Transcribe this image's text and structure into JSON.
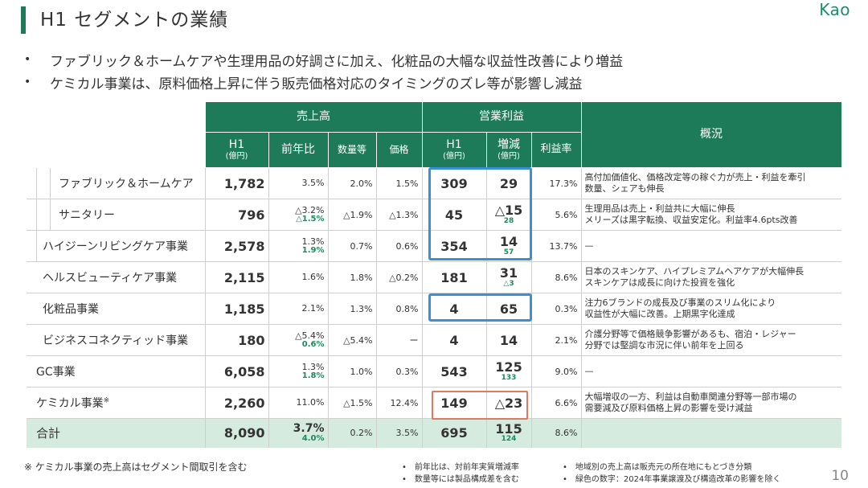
{
  "header": {
    "title": "H1 セグメントの業績",
    "logo": "Kao"
  },
  "bullets": [
    "ファブリック＆ホームケアや生理用品の好調さに加え、化粧品の大幅な収益性改善により増益",
    "ケミカル事業は、原料価格上昇に伴う販売価格対応のタイミングのズレ等が影響し減益"
  ],
  "table": {
    "group_sales": "売上高",
    "group_op": "営業利益",
    "col_h1": "H1",
    "col_unit": "(億円)",
    "col_yoy": "前年比",
    "col_volume": "数量等",
    "col_price": "価格",
    "col_op_h1": "H1",
    "col_change": "増減",
    "col_margin": "利益率",
    "col_summary": "概況",
    "rows": [
      {
        "name": "ファブリック＆ホームケア",
        "sales": "1,782",
        "yoy": "3.5%",
        "yoy_adj": "",
        "volume": "2.0%",
        "price": "1.5%",
        "op": "309",
        "change": "29",
        "change_adj": "",
        "margin": "17.3%",
        "note1": "高付加価値化、価格改定等の稼ぐ力が売上・利益を牽引",
        "note2": "数量、シェアも伸長"
      },
      {
        "name": "サニタリー",
        "sales": "796",
        "yoy": "△3.2%",
        "yoy_adj": "△1.5%",
        "volume": "△1.9%",
        "price": "△1.3%",
        "op": "45",
        "change": "△15",
        "change_adj": "28",
        "margin": "5.6%",
        "note1": "生理用品は売上・利益共に大幅に伸長",
        "note2": "メリーズは黒字転換、収益安定化。利益率4.6pts改善"
      },
      {
        "name": "ハイジーンリビングケア事業",
        "sales": "2,578",
        "yoy": "1.3%",
        "yoy_adj": "1.9%",
        "volume": "0.7%",
        "price": "0.6%",
        "op": "354",
        "change": "14",
        "change_adj": "57",
        "margin": "13.7%",
        "note1": "—",
        "note2": ""
      },
      {
        "name": "ヘルスビューティケア事業",
        "sales": "2,115",
        "yoy": "1.6%",
        "yoy_adj": "",
        "volume": "1.8%",
        "price": "△0.2%",
        "op": "181",
        "change": "31",
        "change_adj": "△3",
        "margin": "8.6%",
        "note1": "日本のスキンケア、ハイプレミアムヘアケアが大幅伸長",
        "note2": "スキンケアは成長に向けた投資を強化"
      },
      {
        "name": "化粧品事業",
        "sales": "1,185",
        "yoy": "2.1%",
        "yoy_adj": "",
        "volume": "1.3%",
        "price": "0.8%",
        "op": "4",
        "change": "65",
        "change_adj": "",
        "margin": "0.3%",
        "note1": "注力6ブランドの成長及び事業のスリム化により",
        "note2": "収益性が大幅に改善。上期黒字化達成"
      },
      {
        "name": "ビジネスコネクティッド事業",
        "sales": "180",
        "yoy": "△5.4%",
        "yoy_adj": "0.6%",
        "volume": "△5.4%",
        "price": "ー",
        "op": "4",
        "change": "14",
        "change_adj": "",
        "margin": "2.1%",
        "note1": "介護分野等で価格競争影響があるも、宿泊・レジャー",
        "note2": "分野では堅調な市況に伴い前年を上回る"
      },
      {
        "name": "GC事業",
        "sales": "6,058",
        "yoy": "1.3%",
        "yoy_adj": "1.8%",
        "volume": "1.0%",
        "price": "0.3%",
        "op": "543",
        "change": "125",
        "change_adj": "133",
        "margin": "9.0%",
        "note1": "—",
        "note2": ""
      },
      {
        "name": "ケミカル事業",
        "name_sup": "※",
        "sales": "2,260",
        "yoy": "11.0%",
        "yoy_adj": "",
        "volume": "△1.5%",
        "price": "12.4%",
        "op": "149",
        "change": "△23",
        "change_adj": "",
        "margin": "6.6%",
        "note1": "大幅増収の一方、利益は自動車関連分野等一部市場の",
        "note2": "需要減及び原料価格上昇の影響を受け減益"
      }
    ],
    "total": {
      "name": "合計",
      "sales": "8,090",
      "yoy": "3.7%",
      "yoy_adj": "4.0%",
      "volume": "0.2%",
      "price": "3.5%",
      "op": "695",
      "change": "115",
      "change_adj": "124",
      "margin": "8.6%"
    }
  },
  "footer": {
    "footnote": "※ ケミカル事業の売上高はセグメント間取引を含む",
    "note_mid1": "前年比は、対前年実質増減率",
    "note_mid2": "数量等には製品構成差を含む",
    "note_right1": "地域別の売上高は販売元の所在地にもとづき分類",
    "note_right2": "緑色の数字：2024年事業譲渡及び構造改革の影響を除く",
    "page": "10"
  },
  "colors": {
    "accent": "#1e7b5a",
    "highlight_blue": "#3b8ed8",
    "highlight_red": "#e07a5f",
    "adjusted_green": "#1a8a5a"
  }
}
